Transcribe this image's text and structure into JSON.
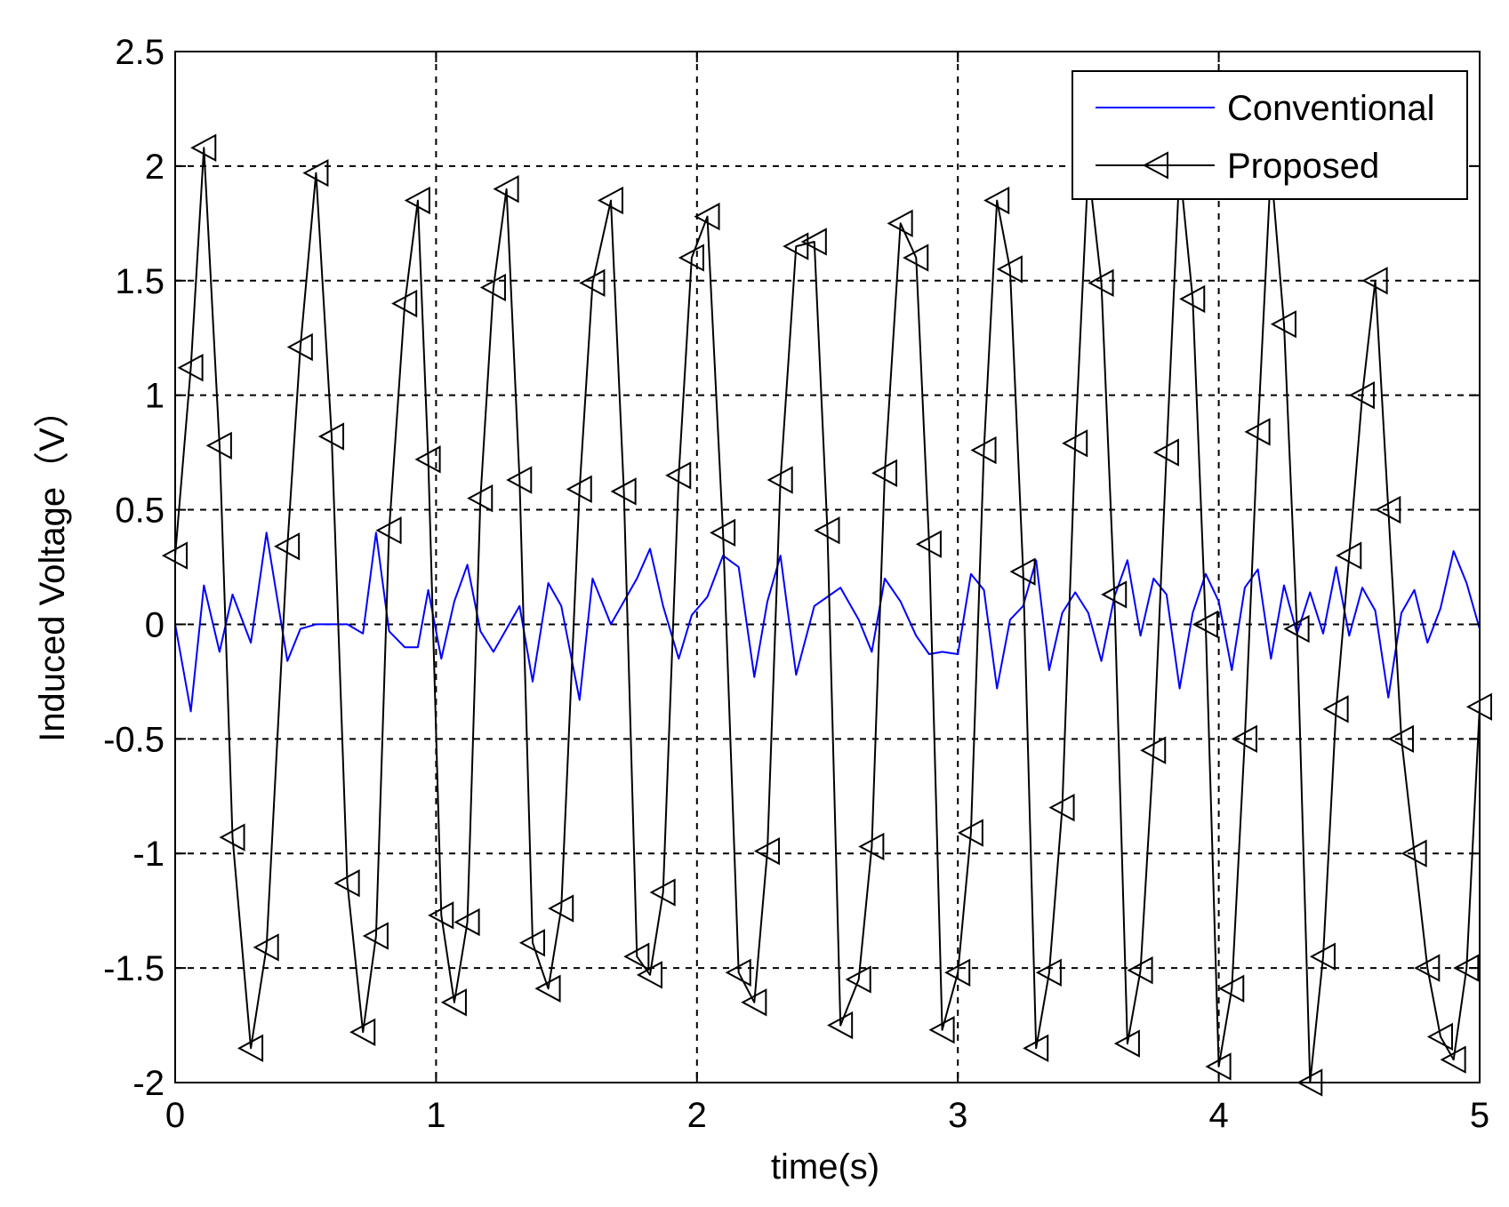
{
  "chart_data": {
    "type": "line",
    "title": "",
    "xlabel": "time(s)",
    "ylabel": "Induced Voltage（V）",
    "xlim": [
      0,
      5
    ],
    "ylim": [
      -2,
      2.5
    ],
    "x_ticks": [
      0,
      1,
      2,
      3,
      4,
      5
    ],
    "x_tick_labels": [
      "0",
      "1",
      "2",
      "3",
      "4",
      "5"
    ],
    "y_ticks": [
      -2,
      -1.5,
      -1,
      -0.5,
      0,
      0.5,
      1,
      1.5,
      2,
      2.5
    ],
    "y_tick_labels": [
      "-2",
      "-1.5",
      "-1",
      "-0.5",
      "0",
      "0.5",
      "1",
      "1.5",
      "2",
      "2.5"
    ],
    "grid": true,
    "grid_style": "dashed",
    "legend_position": "top-right",
    "series": [
      {
        "name": "Conventional",
        "color": "#0000ff",
        "marker": "none",
        "x": [
          0,
          0.06,
          0.11,
          0.17,
          0.22,
          0.29,
          0.35,
          0.43,
          0.48,
          0.54,
          0.6,
          0.66,
          0.72,
          0.77,
          0.82,
          0.88,
          0.93,
          0.97,
          1.02,
          1.07,
          1.12,
          1.17,
          1.22,
          1.27,
          1.32,
          1.37,
          1.43,
          1.48,
          1.55,
          1.6,
          1.67,
          1.72,
          1.77,
          1.82,
          1.87,
          1.93,
          1.98,
          2.04,
          2.1,
          2.16,
          2.22,
          2.27,
          2.32,
          2.38,
          2.45,
          2.5,
          2.55,
          2.62,
          2.67,
          2.72,
          2.78,
          2.84,
          2.89,
          2.94,
          3.0,
          3.05,
          3.1,
          3.15,
          3.2,
          3.25,
          3.3,
          3.35,
          3.4,
          3.45,
          3.5,
          3.55,
          3.6,
          3.65,
          3.7,
          3.75,
          3.8,
          3.85,
          3.9,
          3.95,
          4.0,
          4.05,
          4.1,
          4.15,
          4.2,
          4.25,
          4.3,
          4.35,
          4.4,
          4.45,
          4.5,
          4.55,
          4.6,
          4.65,
          4.7,
          4.75,
          4.8,
          4.85,
          4.9,
          4.95,
          5.0
        ],
        "y": [
          0,
          -0.38,
          0.17,
          -0.12,
          0.13,
          -0.08,
          0.4,
          -0.16,
          -0.02,
          0,
          0,
          0,
          -0.04,
          0.4,
          -0.03,
          -0.1,
          -0.1,
          0.15,
          -0.15,
          0.1,
          0.26,
          -0.03,
          -0.12,
          -0.02,
          0.08,
          -0.25,
          0.18,
          0.08,
          -0.33,
          0.2,
          0,
          0.1,
          0.2,
          0.33,
          0.08,
          -0.15,
          0.04,
          0.12,
          0.3,
          0.25,
          -0.23,
          0.1,
          0.3,
          -0.22,
          0.08,
          0.12,
          0.16,
          0.02,
          -0.12,
          0.2,
          0.1,
          -0.05,
          -0.13,
          -0.12,
          -0.13,
          0.22,
          0.15,
          -0.28,
          0.02,
          0.08,
          0.28,
          -0.2,
          0.05,
          0.14,
          0.05,
          -0.16,
          0.12,
          0.28,
          -0.05,
          0.2,
          0.13,
          -0.28,
          0.05,
          0.22,
          0.1,
          -0.2,
          0.16,
          0.24,
          -0.15,
          0.17,
          -0.04,
          0.14,
          -0.04,
          0.25,
          -0.05,
          0.16,
          0.06,
          -0.32,
          0.05,
          0.15,
          -0.08,
          0.07,
          0.32,
          0.18,
          -0.02
        ]
      },
      {
        "name": "Proposed",
        "color": "#000000",
        "marker": "triangle-left",
        "x": [
          0,
          0.06,
          0.11,
          0.17,
          0.22,
          0.29,
          0.35,
          0.43,
          0.48,
          0.54,
          0.6,
          0.66,
          0.72,
          0.77,
          0.82,
          0.88,
          0.93,
          0.97,
          1.02,
          1.07,
          1.12,
          1.17,
          1.22,
          1.27,
          1.32,
          1.37,
          1.43,
          1.48,
          1.55,
          1.6,
          1.67,
          1.72,
          1.77,
          1.82,
          1.87,
          1.93,
          1.98,
          2.04,
          2.1,
          2.16,
          2.22,
          2.27,
          2.32,
          2.38,
          2.45,
          2.5,
          2.55,
          2.62,
          2.67,
          2.72,
          2.78,
          2.84,
          2.89,
          2.94,
          3.0,
          3.05,
          3.1,
          3.15,
          3.2,
          3.25,
          3.3,
          3.35,
          3.4,
          3.45,
          3.5,
          3.55,
          3.6,
          3.65,
          3.7,
          3.75,
          3.8,
          3.85,
          3.9,
          3.95,
          4.0,
          4.05,
          4.1,
          4.15,
          4.2,
          4.25,
          4.3,
          4.35,
          4.4,
          4.45,
          4.5,
          4.55,
          4.6,
          4.65,
          4.7,
          4.75,
          4.8,
          4.85,
          4.9,
          4.95,
          5.0
        ],
        "y": [
          0.3,
          1.12,
          2.08,
          0.78,
          -0.93,
          -1.85,
          -1.41,
          0.34,
          1.21,
          1.97,
          0.82,
          -1.13,
          -1.78,
          -1.36,
          0.41,
          1.4,
          1.85,
          0.72,
          -1.27,
          -1.65,
          -1.3,
          0.55,
          1.47,
          1.9,
          0.63,
          -1.39,
          -1.59,
          -1.24,
          0.59,
          1.49,
          1.85,
          0.58,
          -1.45,
          -1.53,
          -1.17,
          0.65,
          1.6,
          1.78,
          0.4,
          -1.52,
          -1.65,
          -0.99,
          0.63,
          1.65,
          1.67,
          0.41,
          -1.75,
          -1.55,
          -0.97,
          0.66,
          1.75,
          1.6,
          0.35,
          -1.77,
          -1.52,
          -0.91,
          0.76,
          1.85,
          1.55,
          0.23,
          -1.85,
          -1.52,
          -0.8,
          0.79,
          2.0,
          1.49,
          0.13,
          -1.83,
          -1.51,
          -0.55,
          0.75,
          2.0,
          1.42,
          0.0,
          -1.93,
          -1.59,
          -0.5,
          0.84,
          2.0,
          1.31,
          -0.02,
          -2.0,
          -1.45,
          -0.37,
          0.3,
          1.0,
          1.5,
          0.5,
          -0.5,
          -1.0,
          -1.5,
          -1.8,
          -1.9,
          -1.5,
          -0.36
        ]
      }
    ],
    "legend": [
      "Conventional",
      "Proposed"
    ]
  }
}
